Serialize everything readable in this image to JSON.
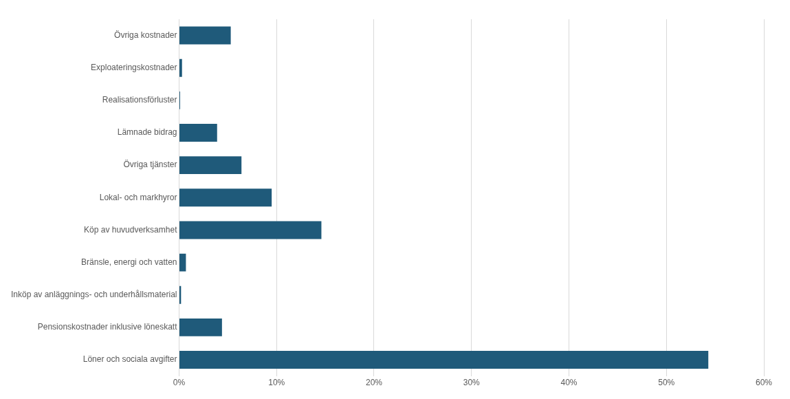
{
  "chart_data": {
    "type": "bar",
    "orientation": "horizontal",
    "categories": [
      "Övriga kostnader",
      "Exploateringskostnader",
      "Realisationsförluster",
      "Lämnade bidrag",
      "Övriga tjänster",
      "Lokal- och markhyror",
      "Köp av huvudverksamhet",
      "Bränsle, energi och vatten",
      "Inköp av anläggnings- och underhållsmaterial",
      "Pensionskostnader inklusive löneskatt",
      "Löner och sociala avgifter"
    ],
    "values": [
      5.3,
      0.3,
      0.1,
      3.9,
      6.4,
      9.5,
      14.6,
      0.7,
      0.2,
      4.4,
      54.3
    ],
    "color": "#1f5a7a",
    "xlim": [
      0,
      60
    ],
    "xticks": [
      {
        "value": 0,
        "label": "0%"
      },
      {
        "value": 10,
        "label": "10%"
      },
      {
        "value": 20,
        "label": "20%"
      },
      {
        "value": 30,
        "label": "30%"
      },
      {
        "value": 40,
        "label": "40%"
      },
      {
        "value": 50,
        "label": "50%"
      },
      {
        "value": 60,
        "label": "60%"
      }
    ],
    "grid": "x",
    "legend": false
  }
}
